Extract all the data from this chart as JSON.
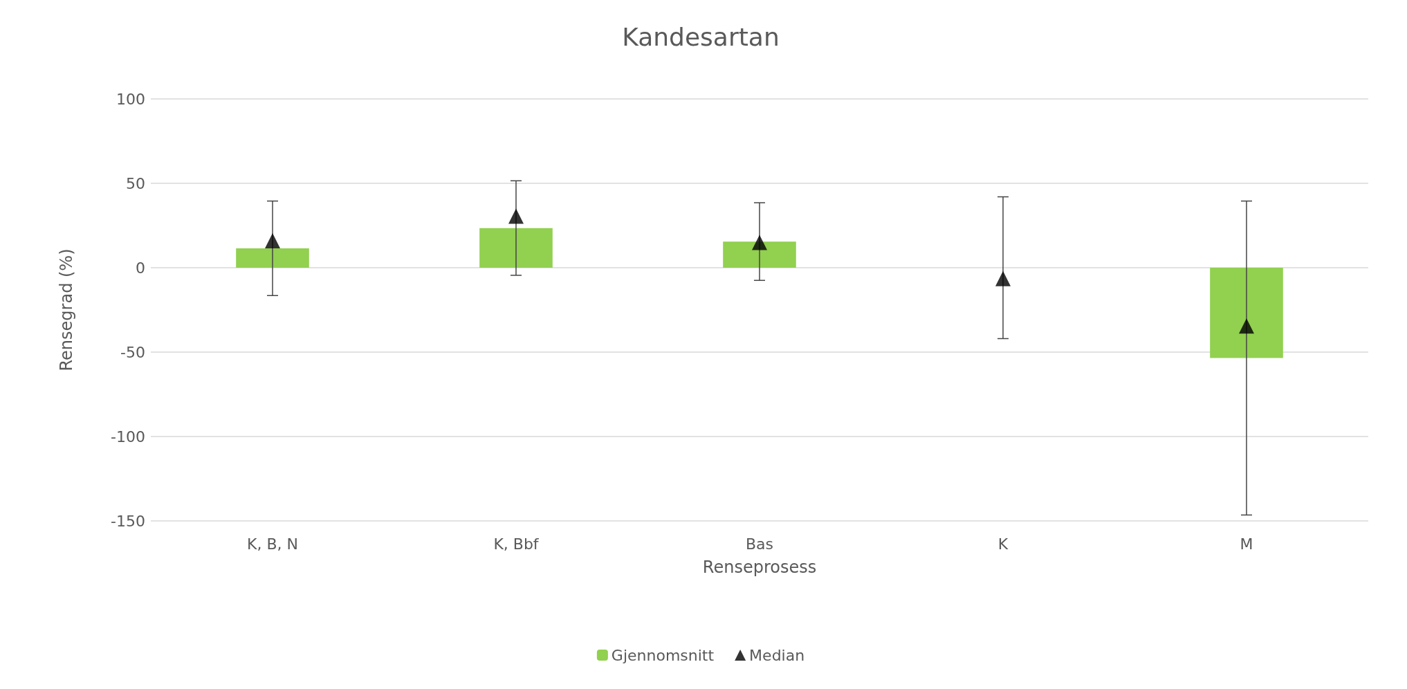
{
  "chart_data": {
    "type": "bar",
    "title": "Kandesartan",
    "xlabel": "Renseprosess",
    "ylabel": "Rensegrad (%)",
    "categories": [
      "K, B, N",
      "K, Bbf",
      "Bas",
      "K",
      "M"
    ],
    "series": [
      {
        "name": "Gjennomsnitt",
        "color": "#92d050",
        "values": [
          11.5,
          23.5,
          15.5,
          0,
          -53.5
        ],
        "errors": [
          28,
          28,
          23,
          42,
          93
        ]
      },
      {
        "name": "Median",
        "type": "scatter",
        "color": "#000000",
        "marker": "triangle",
        "values": [
          16,
          30.5,
          15,
          -6.5,
          -34.5
        ]
      }
    ],
    "ylim": [
      -150,
      100
    ],
    "yticks": [
      -150,
      -100,
      -50,
      0,
      50,
      100
    ],
    "grid": "y",
    "legend": "bottom"
  }
}
